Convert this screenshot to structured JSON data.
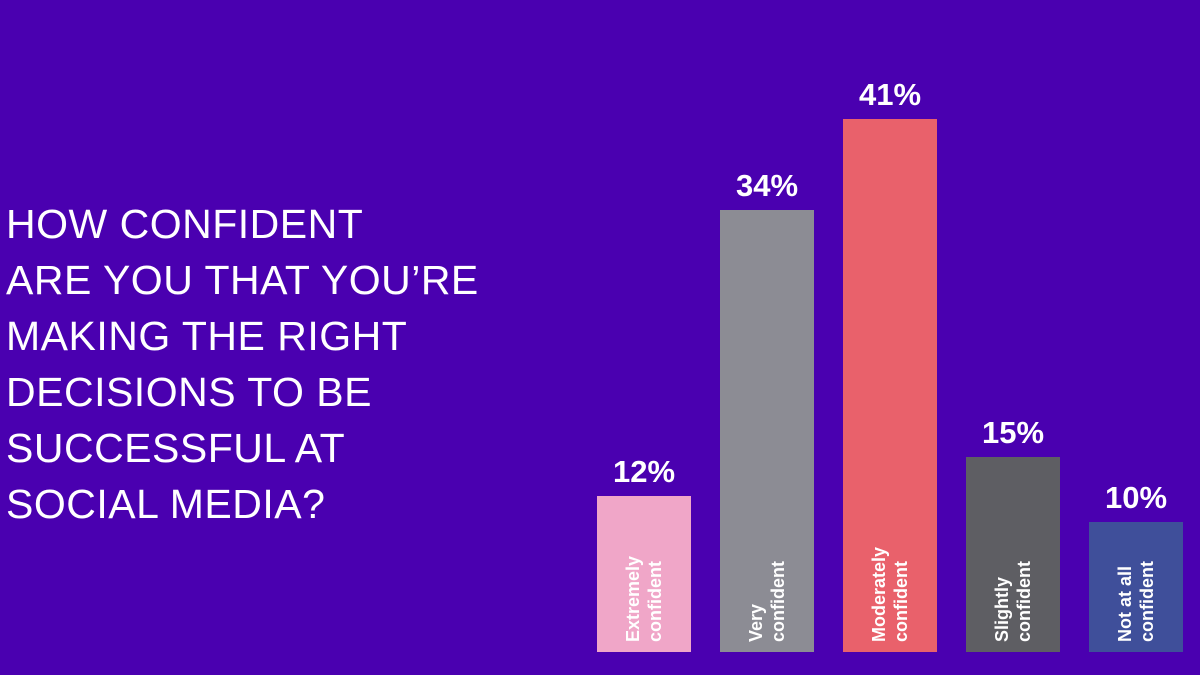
{
  "question": {
    "lines": [
      "HOW CONFIDENT",
      "ARE YOU THAT YOU’RE",
      "MAKING THE RIGHT",
      "DECISIONS TO BE",
      "SUCCESSFUL AT",
      "SOCIAL MEDIA?"
    ]
  },
  "chart_data": {
    "type": "bar",
    "title": "HOW CONFIDENT ARE YOU THAT YOU’RE MAKING THE RIGHT DECISIONS TO BE SUCCESSFUL AT SOCIAL MEDIA?",
    "categories": [
      [
        "Extremely",
        "confident"
      ],
      [
        "Very",
        "confident"
      ],
      [
        "Moderately",
        "confident"
      ],
      [
        "Slightly",
        "confident"
      ],
      [
        "Not at all",
        "confident"
      ]
    ],
    "values": [
      12,
      34,
      41,
      15,
      10
    ],
    "data_labels": [
      "12%",
      "34%",
      "41%",
      "15%",
      "10%"
    ],
    "unit": "%",
    "colors": [
      "#f0a6c8",
      "#8c8c94",
      "#e9616b",
      "#5e5e63",
      "#3f4f9a"
    ],
    "category_label_orientation": "vertical",
    "grid": false,
    "legend": "none"
  }
}
